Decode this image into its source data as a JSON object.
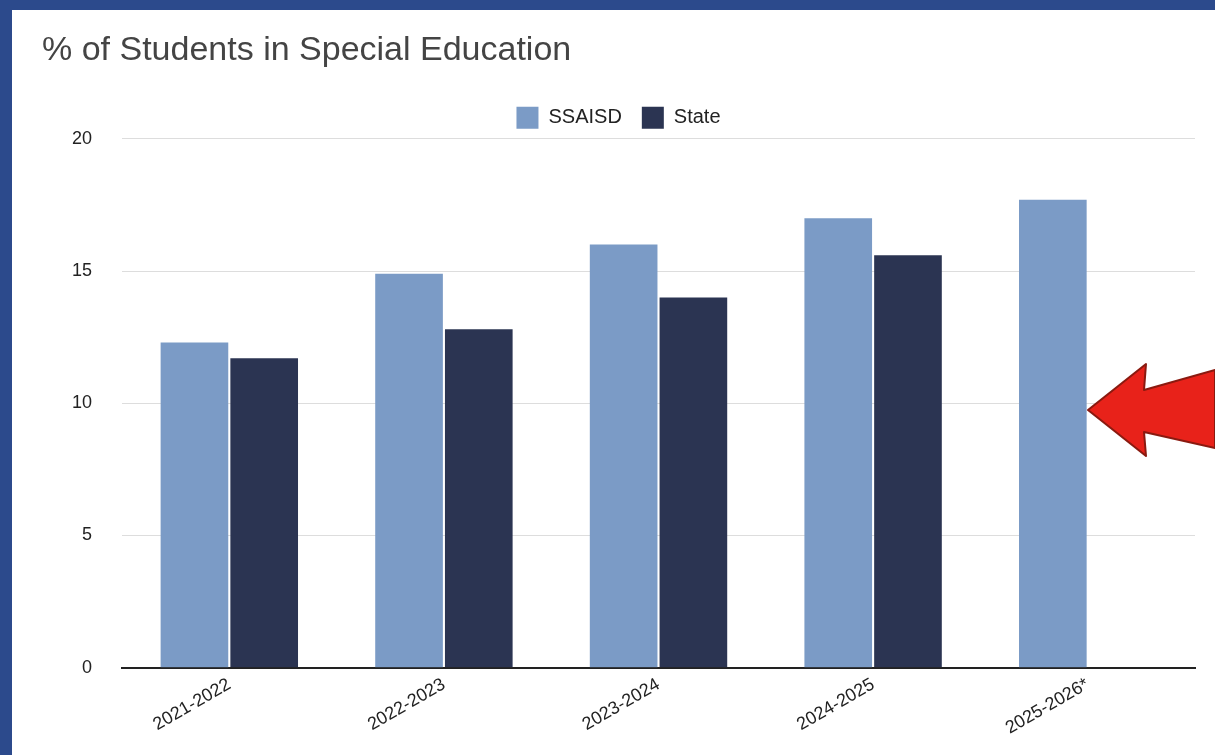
{
  "chart_data": {
    "type": "bar",
    "title": "% of Students in Special Education",
    "categories": [
      "2021-2022",
      "2022-2023",
      "2023-2024",
      "2024-2025",
      "2025-2026*"
    ],
    "series": [
      {
        "name": "SSAISD",
        "color": "#7b9bc6",
        "values": [
          12.3,
          14.9,
          16.0,
          17.0,
          17.7
        ]
      },
      {
        "name": "State",
        "color": "#2b3452",
        "values": [
          11.7,
          12.8,
          14.0,
          15.6,
          null
        ]
      }
    ],
    "ylim": [
      0,
      20
    ],
    "yticks": [
      0,
      5,
      10,
      15,
      20
    ],
    "grid": "y",
    "legend": "top"
  }
}
